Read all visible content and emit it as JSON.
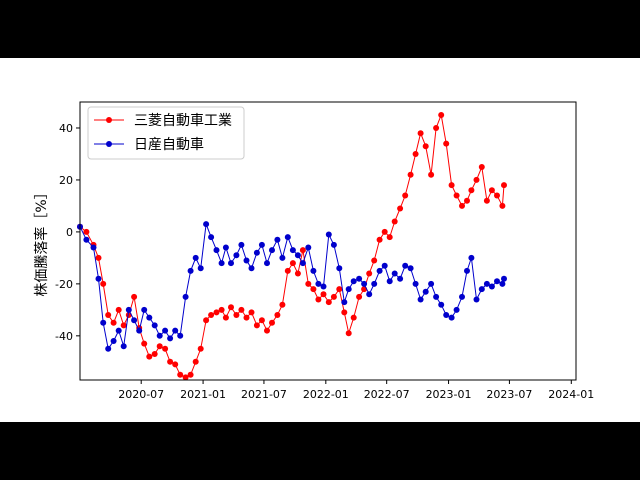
{
  "chart_data": {
    "type": "line",
    "ylabel": "株価騰落率［%］",
    "ylim": [
      -57,
      50
    ],
    "yticks": [
      -40,
      -20,
      0,
      20,
      40
    ],
    "xlim": [
      "2020-01-01",
      "2024-01-15"
    ],
    "xticks": [
      {
        "date": "2020-07-01",
        "label": "2020-07"
      },
      {
        "date": "2021-01-01",
        "label": "2021-01"
      },
      {
        "date": "2021-07-01",
        "label": "2021-07"
      },
      {
        "date": "2022-01-01",
        "label": "2022-01"
      },
      {
        "date": "2022-07-01",
        "label": "2022-07"
      },
      {
        "date": "2023-01-01",
        "label": "2023-01"
      },
      {
        "date": "2023-07-01",
        "label": "2023-07"
      },
      {
        "date": "2024-01-01",
        "label": "2024-01"
      }
    ],
    "legend_position": "top-left",
    "grid": false,
    "series": [
      {
        "name": "三菱自動車工業",
        "color": "#ff0000",
        "points": [
          [
            "2020-01-01",
            2
          ],
          [
            "2020-01-20",
            0
          ],
          [
            "2020-02-10",
            -5
          ],
          [
            "2020-02-25",
            -10
          ],
          [
            "2020-03-10",
            -20
          ],
          [
            "2020-03-25",
            -32
          ],
          [
            "2020-04-10",
            -35
          ],
          [
            "2020-04-25",
            -30
          ],
          [
            "2020-05-10",
            -36
          ],
          [
            "2020-05-25",
            -32
          ],
          [
            "2020-06-10",
            -25
          ],
          [
            "2020-06-25",
            -37
          ],
          [
            "2020-07-10",
            -43
          ],
          [
            "2020-07-25",
            -48
          ],
          [
            "2020-08-10",
            -47
          ],
          [
            "2020-08-25",
            -44
          ],
          [
            "2020-09-10",
            -45
          ],
          [
            "2020-09-25",
            -50
          ],
          [
            "2020-10-10",
            -51
          ],
          [
            "2020-10-25",
            -55
          ],
          [
            "2020-11-10",
            -56
          ],
          [
            "2020-11-25",
            -55
          ],
          [
            "2020-12-10",
            -50
          ],
          [
            "2020-12-25",
            -45
          ],
          [
            "2021-01-10",
            -34
          ],
          [
            "2021-01-25",
            -32
          ],
          [
            "2021-02-10",
            -31
          ],
          [
            "2021-02-25",
            -30
          ],
          [
            "2021-03-10",
            -33
          ],
          [
            "2021-03-25",
            -29
          ],
          [
            "2021-04-10",
            -32
          ],
          [
            "2021-04-25",
            -30
          ],
          [
            "2021-05-10",
            -33
          ],
          [
            "2021-05-25",
            -31
          ],
          [
            "2021-06-10",
            -36
          ],
          [
            "2021-06-25",
            -34
          ],
          [
            "2021-07-10",
            -38
          ],
          [
            "2021-07-25",
            -35
          ],
          [
            "2021-08-10",
            -32
          ],
          [
            "2021-08-25",
            -28
          ],
          [
            "2021-09-10",
            -15
          ],
          [
            "2021-09-25",
            -12
          ],
          [
            "2021-10-10",
            -16
          ],
          [
            "2021-10-25",
            -7
          ],
          [
            "2021-11-10",
            -20
          ],
          [
            "2021-11-25",
            -22
          ],
          [
            "2021-12-10",
            -26
          ],
          [
            "2021-12-25",
            -24
          ],
          [
            "2022-01-10",
            -27
          ],
          [
            "2022-01-25",
            -25
          ],
          [
            "2022-02-10",
            -22
          ],
          [
            "2022-02-25",
            -31
          ],
          [
            "2022-03-10",
            -39
          ],
          [
            "2022-03-25",
            -33
          ],
          [
            "2022-04-10",
            -25
          ],
          [
            "2022-04-25",
            -22
          ],
          [
            "2022-05-10",
            -16
          ],
          [
            "2022-05-25",
            -11
          ],
          [
            "2022-06-10",
            -3
          ],
          [
            "2022-06-25",
            0
          ],
          [
            "2022-07-10",
            -2
          ],
          [
            "2022-07-25",
            4
          ],
          [
            "2022-08-10",
            9
          ],
          [
            "2022-08-25",
            14
          ],
          [
            "2022-09-10",
            22
          ],
          [
            "2022-09-25",
            30
          ],
          [
            "2022-10-10",
            38
          ],
          [
            "2022-10-25",
            33
          ],
          [
            "2022-11-10",
            22
          ],
          [
            "2022-11-25",
            40
          ],
          [
            "2022-12-10",
            45
          ],
          [
            "2022-12-25",
            34
          ],
          [
            "2023-01-10",
            18
          ],
          [
            "2023-01-25",
            14
          ],
          [
            "2023-02-10",
            10
          ],
          [
            "2023-02-25",
            12
          ],
          [
            "2023-03-10",
            16
          ],
          [
            "2023-03-25",
            20
          ],
          [
            "2023-04-10",
            25
          ],
          [
            "2023-04-25",
            12
          ],
          [
            "2023-05-10",
            16
          ],
          [
            "2023-05-25",
            14
          ],
          [
            "2023-06-10",
            10
          ],
          [
            "2023-06-15",
            18
          ]
        ]
      },
      {
        "name": "日産自動車",
        "color": "#0000cc",
        "points": [
          [
            "2020-01-01",
            2
          ],
          [
            "2020-01-20",
            -3
          ],
          [
            "2020-02-10",
            -6
          ],
          [
            "2020-02-25",
            -18
          ],
          [
            "2020-03-10",
            -35
          ],
          [
            "2020-03-25",
            -45
          ],
          [
            "2020-04-10",
            -42
          ],
          [
            "2020-04-25",
            -38
          ],
          [
            "2020-05-10",
            -44
          ],
          [
            "2020-05-25",
            -30
          ],
          [
            "2020-06-10",
            -34
          ],
          [
            "2020-06-25",
            -38
          ],
          [
            "2020-07-10",
            -30
          ],
          [
            "2020-07-25",
            -33
          ],
          [
            "2020-08-10",
            -36
          ],
          [
            "2020-08-25",
            -40
          ],
          [
            "2020-09-10",
            -38
          ],
          [
            "2020-09-25",
            -41
          ],
          [
            "2020-10-10",
            -38
          ],
          [
            "2020-10-25",
            -40
          ],
          [
            "2020-11-10",
            -25
          ],
          [
            "2020-11-25",
            -15
          ],
          [
            "2020-12-10",
            -10
          ],
          [
            "2020-12-25",
            -14
          ],
          [
            "2021-01-10",
            3
          ],
          [
            "2021-01-25",
            -2
          ],
          [
            "2021-02-10",
            -7
          ],
          [
            "2021-02-25",
            -12
          ],
          [
            "2021-03-10",
            -6
          ],
          [
            "2021-03-25",
            -12
          ],
          [
            "2021-04-10",
            -9
          ],
          [
            "2021-04-25",
            -5
          ],
          [
            "2021-05-10",
            -11
          ],
          [
            "2021-05-25",
            -14
          ],
          [
            "2021-06-10",
            -8
          ],
          [
            "2021-06-25",
            -5
          ],
          [
            "2021-07-10",
            -12
          ],
          [
            "2021-07-25",
            -7
          ],
          [
            "2021-08-10",
            -3
          ],
          [
            "2021-08-25",
            -10
          ],
          [
            "2021-09-10",
            -2
          ],
          [
            "2021-09-25",
            -7
          ],
          [
            "2021-10-10",
            -9
          ],
          [
            "2021-10-25",
            -12
          ],
          [
            "2021-11-10",
            -6
          ],
          [
            "2021-11-25",
            -15
          ],
          [
            "2021-12-10",
            -20
          ],
          [
            "2021-12-25",
            -21
          ],
          [
            "2022-01-10",
            -1
          ],
          [
            "2022-01-25",
            -5
          ],
          [
            "2022-02-10",
            -14
          ],
          [
            "2022-02-25",
            -27
          ],
          [
            "2022-03-10",
            -22
          ],
          [
            "2022-03-25",
            -19
          ],
          [
            "2022-04-10",
            -18
          ],
          [
            "2022-04-25",
            -20
          ],
          [
            "2022-05-10",
            -24
          ],
          [
            "2022-05-25",
            -20
          ],
          [
            "2022-06-10",
            -15
          ],
          [
            "2022-06-25",
            -13
          ],
          [
            "2022-07-10",
            -19
          ],
          [
            "2022-07-25",
            -16
          ],
          [
            "2022-08-10",
            -18
          ],
          [
            "2022-08-25",
            -13
          ],
          [
            "2022-09-10",
            -14
          ],
          [
            "2022-09-25",
            -20
          ],
          [
            "2022-10-10",
            -26
          ],
          [
            "2022-10-25",
            -23
          ],
          [
            "2022-11-10",
            -20
          ],
          [
            "2022-11-25",
            -25
          ],
          [
            "2022-12-10",
            -28
          ],
          [
            "2022-12-25",
            -32
          ],
          [
            "2023-01-10",
            -33
          ],
          [
            "2023-01-25",
            -30
          ],
          [
            "2023-02-10",
            -25
          ],
          [
            "2023-02-25",
            -15
          ],
          [
            "2023-03-10",
            -10
          ],
          [
            "2023-03-25",
            -26
          ],
          [
            "2023-04-10",
            -22
          ],
          [
            "2023-04-25",
            -20
          ],
          [
            "2023-05-10",
            -21
          ],
          [
            "2023-05-25",
            -19
          ],
          [
            "2023-06-10",
            -20
          ],
          [
            "2023-06-15",
            -18
          ]
        ]
      }
    ]
  }
}
